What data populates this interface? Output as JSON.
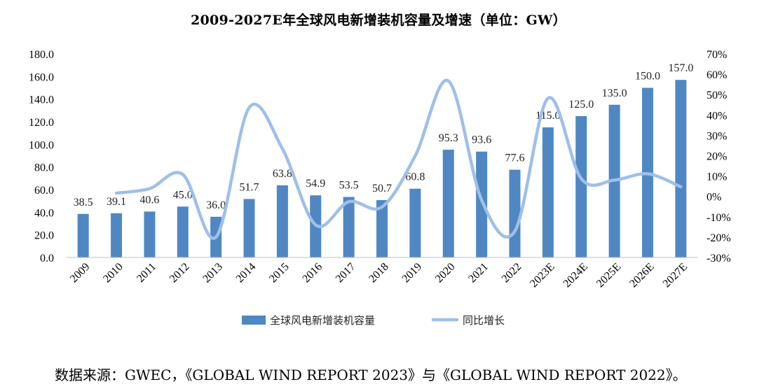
{
  "chart_data": {
    "type": "bar+line",
    "title": "2009-2027E年全球风电新增装机容量及增速（单位：GW）",
    "categories": [
      "2009",
      "2010",
      "2011",
      "2012",
      "2013",
      "2014",
      "2015",
      "2016",
      "2017",
      "2018",
      "2019",
      "2020",
      "2021",
      "2022",
      "2023E",
      "2024E",
      "2025E",
      "2026E",
      "2027E"
    ],
    "series": [
      {
        "name": "全球风电新增装机容量",
        "type": "bar",
        "axis": "left",
        "values": [
          38.5,
          39.1,
          40.6,
          45.0,
          36.0,
          51.7,
          63.8,
          54.9,
          53.5,
          50.7,
          60.8,
          95.3,
          93.6,
          77.6,
          115.0,
          125.0,
          135.0,
          150.0,
          157.0
        ],
        "labels": [
          "38.5",
          "39.1",
          "40.6",
          "45.0",
          "36.0",
          "51.7",
          "63.8",
          "54.9",
          "53.5",
          "50.7",
          "60.8",
          "95.3",
          "93.6",
          "77.6",
          "115.0",
          "125.0",
          "135.0",
          "150.0",
          "157.0"
        ],
        "color": "#4f87c2"
      },
      {
        "name": "同比增长",
        "type": "line",
        "axis": "right",
        "values": [
          null,
          1.6,
          3.8,
          10.8,
          -20.0,
          43.6,
          23.4,
          -14.0,
          -2.6,
          -5.2,
          19.9,
          56.7,
          -1.8,
          -17.1,
          48.2,
          8.7,
          8.0,
          11.1,
          4.7
        ],
        "color": "#9ebfe8"
      }
    ],
    "y_left": {
      "min": 0,
      "max": 180,
      "step": 20,
      "tick_labels": [
        "0.0",
        "20.0",
        "40.0",
        "60.0",
        "80.0",
        "100.0",
        "120.0",
        "140.0",
        "160.0",
        "180.0"
      ]
    },
    "y_right": {
      "min": -30,
      "max": 70,
      "step": 10,
      "tick_labels": [
        "-30%",
        "-20%",
        "-10%",
        "0%",
        "10%",
        "20%",
        "30%",
        "40%",
        "50%",
        "60%",
        "70%"
      ]
    },
    "legend": {
      "position": "bottom",
      "bar_label": "全球风电新增装机容量",
      "line_label": "同比增长"
    }
  },
  "source_text": "数据来源：GWEC，《GLOBAL WIND REPORT 2023》与《GLOBAL WIND REPORT 2022》。"
}
